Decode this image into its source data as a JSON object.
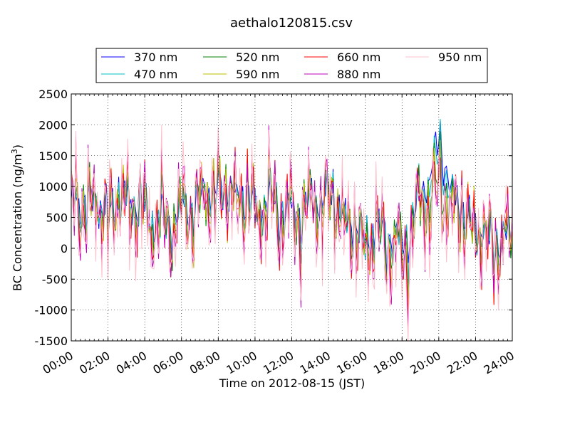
{
  "chart_data": {
    "type": "line",
    "title": "aethalo120815.csv",
    "xlabel": "Time on 2012-08-15 (JST)",
    "ylabel_main": "BC Concentration (ng/m",
    "ylabel_sup": "3",
    "ylabel_close": ")",
    "xlim": [
      "00:00",
      "24:00"
    ],
    "ylim": [
      -1500,
      2500
    ],
    "grid": true,
    "legend_position": "top",
    "x_ticks": [
      "00:00",
      "02:00",
      "04:00",
      "06:00",
      "08:00",
      "10:00",
      "12:00",
      "14:00",
      "16:00",
      "18:00",
      "20:00",
      "22:00",
      "24:00"
    ],
    "y_ticks": [
      "-1500",
      "-1000",
      "-500",
      "0",
      "500",
      "1000",
      "1500",
      "2000",
      "2500"
    ],
    "y_tick_values": [
      -1500,
      -1000,
      -500,
      0,
      500,
      1000,
      1500,
      2000,
      2500
    ],
    "x_hours": [
      0,
      1,
      2,
      3,
      4,
      5,
      6,
      7,
      8,
      9,
      10,
      11,
      12,
      13,
      14,
      15,
      16,
      17,
      18,
      19,
      20,
      21,
      22,
      23,
      24
    ],
    "series": [
      {
        "name": "370 nm",
        "color": "#0000ff",
        "values": [
          650,
          800,
          600,
          850,
          550,
          400,
          550,
          800,
          1000,
          900,
          700,
          750,
          550,
          700,
          900,
          450,
          200,
          300,
          50,
          800,
          1700,
          700,
          350,
          100,
          150
        ]
      },
      {
        "name": "470 nm",
        "color": "#00bfbf",
        "values": [
          650,
          780,
          600,
          830,
          540,
          420,
          540,
          780,
          980,
          880,
          680,
          740,
          520,
          680,
          880,
          430,
          150,
          260,
          0,
          760,
          1500,
          650,
          330,
          90,
          140
        ]
      },
      {
        "name": "520 nm",
        "color": "#008000",
        "values": [
          640,
          760,
          580,
          820,
          530,
          400,
          530,
          770,
          960,
          870,
          660,
          720,
          500,
          660,
          860,
          410,
          120,
          230,
          -50,
          720,
          1100,
          620,
          310,
          80,
          130
        ]
      },
      {
        "name": "590 nm",
        "color": "#bfbf00",
        "values": [
          630,
          740,
          570,
          810,
          520,
          380,
          520,
          760,
          940,
          850,
          640,
          700,
          480,
          640,
          840,
          390,
          100,
          200,
          -100,
          690,
          950,
          600,
          300,
          70,
          120
        ]
      },
      {
        "name": "660 nm",
        "color": "#ff0000",
        "values": [
          620,
          720,
          560,
          800,
          510,
          370,
          510,
          750,
          920,
          830,
          620,
          680,
          460,
          620,
          820,
          370,
          80,
          180,
          -200,
          660,
          850,
          580,
          290,
          60,
          110
        ]
      },
      {
        "name": "880 nm",
        "color": "#bf00bf",
        "values": [
          600,
          700,
          540,
          780,
          500,
          350,
          500,
          730,
          900,
          800,
          600,
          650,
          440,
          600,
          800,
          340,
          50,
          150,
          -300,
          620,
          800,
          560,
          270,
          50,
          100
        ]
      },
      {
        "name": "950 nm",
        "color": "#ffc0cb",
        "values": [
          550,
          650,
          500,
          750,
          480,
          300,
          480,
          700,
          850,
          750,
          550,
          600,
          400,
          550,
          750,
          300,
          0,
          100,
          -400,
          580,
          750,
          520,
          250,
          40,
          90
        ]
      }
    ]
  }
}
